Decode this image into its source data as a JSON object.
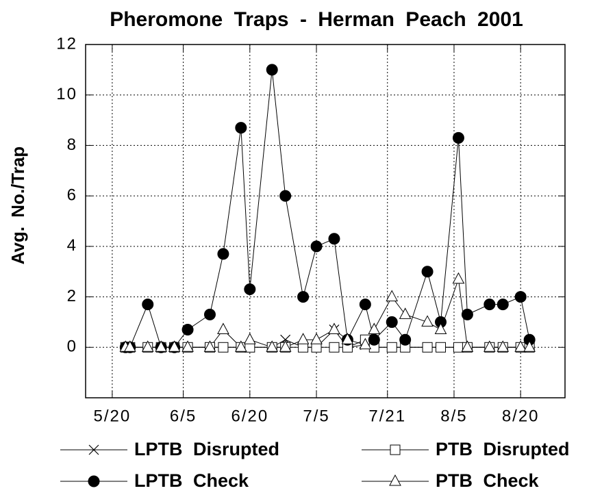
{
  "chart_data": {
    "type": "line",
    "title": "Pheromone Traps - Herman Peach 2001",
    "y_label": "Avg.  No./Trap",
    "x": [
      143,
      144,
      148,
      151,
      154,
      157,
      162,
      165,
      169,
      171,
      176,
      179,
      183,
      186,
      190,
      193,
      197,
      199,
      203,
      206,
      211,
      214,
      218,
      220,
      225,
      228,
      232,
      234
    ],
    "series": [
      {
        "name": "LPTB  Disrupted",
        "color": "#000000",
        "marker": "x",
        "values": [
          0,
          0,
          0,
          0,
          0,
          0,
          0,
          0,
          0,
          0,
          0,
          0.3,
          0,
          0,
          0.7,
          0,
          0.1,
          0,
          0,
          0,
          0,
          0,
          0,
          0,
          0,
          0,
          0,
          0
        ]
      },
      {
        "name": "PTB  Disrupted",
        "color": "#000000",
        "marker": "square",
        "values": [
          0,
          0,
          0,
          0,
          0,
          0,
          0,
          0,
          0,
          0,
          0,
          0,
          0,
          0,
          0,
          0,
          0.3,
          0,
          0,
          0,
          0,
          0,
          0,
          0,
          0,
          0,
          0,
          0
        ]
      },
      {
        "name": "LPTB  Check",
        "color": "#000000",
        "marker": "circle",
        "values": [
          0,
          0,
          1.7,
          0,
          0,
          0.7,
          1.3,
          3.7,
          8.7,
          2.3,
          11,
          6,
          2,
          4,
          4.3,
          0.3,
          1.7,
          0.3,
          1,
          0.3,
          3,
          1,
          8.3,
          1.3,
          1.7,
          1.7,
          2,
          0.3
        ]
      },
      {
        "name": "PTB  Check",
        "color": "#000000",
        "marker": "triangle",
        "values": [
          0,
          0,
          0,
          0,
          0,
          0,
          0,
          0.7,
          0,
          0.3,
          0,
          0,
          0.3,
          0.3,
          0.7,
          0.3,
          0.1,
          0.7,
          2,
          1.3,
          1,
          0.7,
          2.7,
          0,
          0,
          0,
          0,
          0
        ]
      }
    ],
    "xlim": [
      134,
      242
    ],
    "xticks": [
      {
        "value": 140,
        "label": "5/20"
      },
      {
        "value": 156,
        "label": "6/5"
      },
      {
        "value": 171,
        "label": "6/20"
      },
      {
        "value": 186,
        "label": "7/5"
      },
      {
        "value": 202,
        "label": "7/21"
      },
      {
        "value": 217,
        "label": "8/5"
      },
      {
        "value": 232,
        "label": "8/20"
      }
    ],
    "ylim": [
      -2,
      12
    ],
    "yticks": [
      0,
      2,
      4,
      6,
      8,
      10,
      12
    ],
    "grid": true
  }
}
